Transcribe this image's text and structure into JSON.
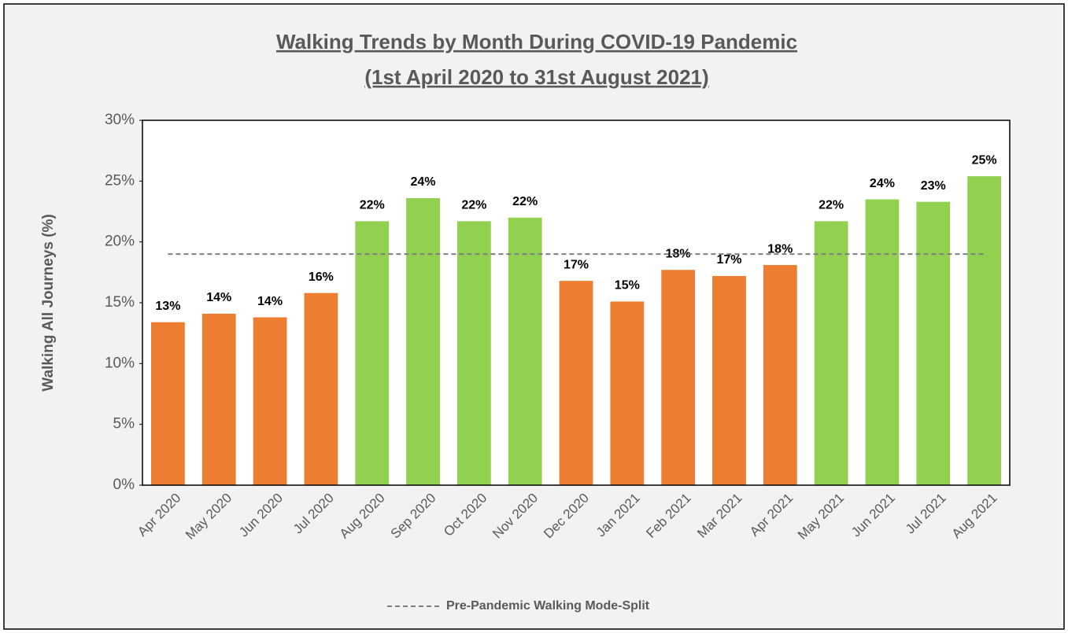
{
  "chart_data": {
    "type": "bar",
    "title": "Walking Trends by Month During COVID-19 Pandemic",
    "subtitle": "(1st April 2020 to 31st August 2021)",
    "y_label": "Walking All Journeys (%)",
    "categories": [
      "Apr 2020",
      "May 2020",
      "Jun 2020",
      "Jul 2020",
      "Aug 2020",
      "Sep 2020",
      "Oct 2020",
      "Nov 2020",
      "Dec 2020",
      "Jan 2021",
      "Feb 2021",
      "Mar 2021",
      "Apr 2021",
      "May 2021",
      "Jun 2021",
      "Jul 2021",
      "Aug 2021"
    ],
    "values": [
      13.4,
      14.1,
      13.8,
      15.8,
      21.7,
      23.6,
      21.7,
      22.0,
      16.8,
      15.1,
      17.7,
      17.2,
      18.1,
      21.7,
      23.5,
      23.3,
      25.4
    ],
    "value_labels": [
      "13%",
      "14%",
      "14%",
      "16%",
      "22%",
      "24%",
      "22%",
      "22%",
      "17%",
      "15%",
      "18%",
      "17%",
      "18%",
      "22%",
      "24%",
      "23%",
      "25%"
    ],
    "colors": [
      "#ED7D31",
      "#ED7D31",
      "#ED7D31",
      "#ED7D31",
      "#92D050",
      "#92D050",
      "#92D050",
      "#92D050",
      "#ED7D31",
      "#ED7D31",
      "#ED7D31",
      "#ED7D31",
      "#ED7D31",
      "#92D050",
      "#92D050",
      "#92D050",
      "#92D050"
    ],
    "ylim": [
      0,
      30
    ],
    "yticks": [
      {
        "value": 0,
        "label": "0%"
      },
      {
        "value": 5,
        "label": "5%"
      },
      {
        "value": 10,
        "label": "10%"
      },
      {
        "value": 15,
        "label": "15%"
      },
      {
        "value": 20,
        "label": "20%"
      },
      {
        "value": 25,
        "label": "25%"
      },
      {
        "value": 30,
        "label": "30%"
      }
    ],
    "reference_line": {
      "name": "Pre-Pandemic Walking Mode-Split",
      "value": 19,
      "color": "#7f7f7f"
    },
    "grid": false
  }
}
